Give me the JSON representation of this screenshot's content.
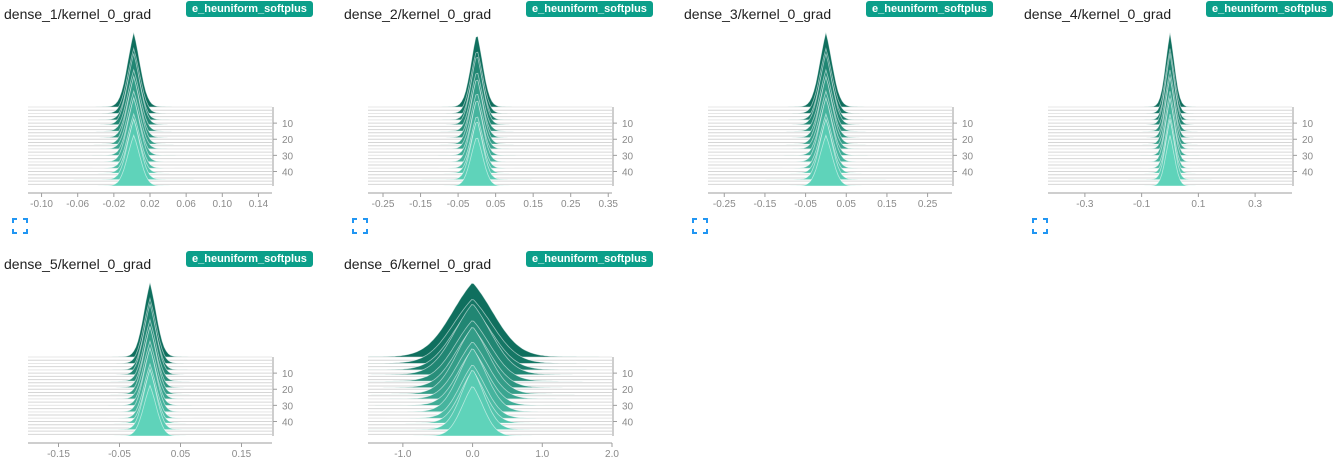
{
  "cards": [
    {
      "title": "dense_1/kernel_0_grad",
      "run": "e_heuniform_softplus",
      "x_ticks": [
        -0.1,
        -0.06,
        -0.02,
        0.02,
        0.06,
        0.1,
        0.14
      ],
      "x_tick_labels": [
        "-0.10",
        "-0.06",
        "-0.02",
        "0.02",
        "0.06",
        "0.10",
        "0.14"
      ],
      "y_ticks": [
        10,
        20,
        30,
        40
      ],
      "y_tick_labels": [
        "10",
        "20",
        "30",
        "40"
      ],
      "chart_data": {
        "type": "histogram-ridgeline",
        "x_range": [
          -0.115,
          0.155
        ],
        "center": 0.002,
        "width": 0.008,
        "spread_growth": 0.0,
        "steps": [
          0,
          49
        ]
      }
    },
    {
      "title": "dense_2/kernel_0_grad",
      "run": "e_heuniform_softplus",
      "x_ticks": [
        -0.25,
        -0.15,
        -0.05,
        0.05,
        0.15,
        0.25,
        0.35
      ],
      "x_tick_labels": [
        "-0.25",
        "-0.15",
        "-0.05",
        "0.05",
        "0.15",
        "0.25",
        "0.35"
      ],
      "y_ticks": [
        10,
        20,
        30,
        40
      ],
      "y_tick_labels": [
        "10",
        "20",
        "30",
        "40"
      ],
      "chart_data": {
        "type": "histogram-ridgeline",
        "x_range": [
          -0.29,
          0.36
        ],
        "center": 0.0,
        "width": 0.018,
        "spread_growth": 0.0,
        "steps": [
          0,
          49
        ]
      }
    },
    {
      "title": "dense_3/kernel_0_grad",
      "run": "e_heuniform_softplus",
      "x_ticks": [
        -0.25,
        -0.15,
        -0.05,
        0.05,
        0.15,
        0.25
      ],
      "x_tick_labels": [
        "-0.25",
        "-0.15",
        "-0.05",
        "0.05",
        "0.15",
        "0.25"
      ],
      "y_ticks": [
        10,
        20,
        30,
        40
      ],
      "y_tick_labels": [
        "10",
        "20",
        "30",
        "40"
      ],
      "chart_data": {
        "type": "histogram-ridgeline",
        "x_range": [
          -0.29,
          0.31
        ],
        "center": 0.0,
        "width": 0.018,
        "spread_growth": 0.0,
        "steps": [
          0,
          49
        ]
      }
    },
    {
      "title": "dense_4/kernel_0_grad",
      "run": "e_heuniform_softplus",
      "x_ticks": [
        -0.3,
        -0.1,
        0.1,
        0.3
      ],
      "x_tick_labels": [
        "-0.3",
        "-0.1",
        "0.1",
        "0.3"
      ],
      "y_ticks": [
        10,
        20,
        30,
        40
      ],
      "y_tick_labels": [
        "10",
        "20",
        "30",
        "40"
      ],
      "chart_data": {
        "type": "histogram-ridgeline",
        "x_range": [
          -0.43,
          0.43
        ],
        "center": 0.0,
        "width": 0.018,
        "spread_growth": 0.0,
        "steps": [
          0,
          49
        ]
      }
    },
    {
      "title": "dense_5/kernel_0_grad",
      "run": "e_heuniform_softplus",
      "x_ticks": [
        -0.15,
        -0.05,
        0.05,
        0.15
      ],
      "x_tick_labels": [
        "-0.15",
        "-0.05",
        "0.05",
        "0.15"
      ],
      "y_ticks": [
        10,
        20,
        30,
        40
      ],
      "y_tick_labels": [
        "10",
        "20",
        "30",
        "40"
      ],
      "chart_data": {
        "type": "histogram-ridgeline",
        "x_range": [
          -0.2,
          0.2
        ],
        "center": 0.0,
        "width": 0.012,
        "spread_growth": 0.0,
        "steps": [
          0,
          49
        ]
      }
    },
    {
      "title": "dense_6/kernel_0_grad",
      "run": "e_heuniform_softplus",
      "x_ticks": [
        -1.0,
        0.0,
        1.0,
        2.0
      ],
      "x_tick_labels": [
        "-1.0",
        "0.0",
        "1.0",
        "2.0"
      ],
      "y_ticks": [
        10,
        20,
        30,
        40
      ],
      "y_tick_labels": [
        "10",
        "20",
        "30",
        "40"
      ],
      "chart_data": {
        "type": "histogram-ridgeline",
        "x_range": [
          -1.5,
          2.0
        ],
        "center": 0.0,
        "width": 0.35,
        "spread_growth": -0.5,
        "steps": [
          0,
          49
        ]
      }
    }
  ],
  "colors": {
    "early": "#0f6f5e",
    "late": "#5fd3ba",
    "badge": "#0b9f8a",
    "expand_icon": "#2196f3",
    "axis_text": "#8a8a8a"
  }
}
